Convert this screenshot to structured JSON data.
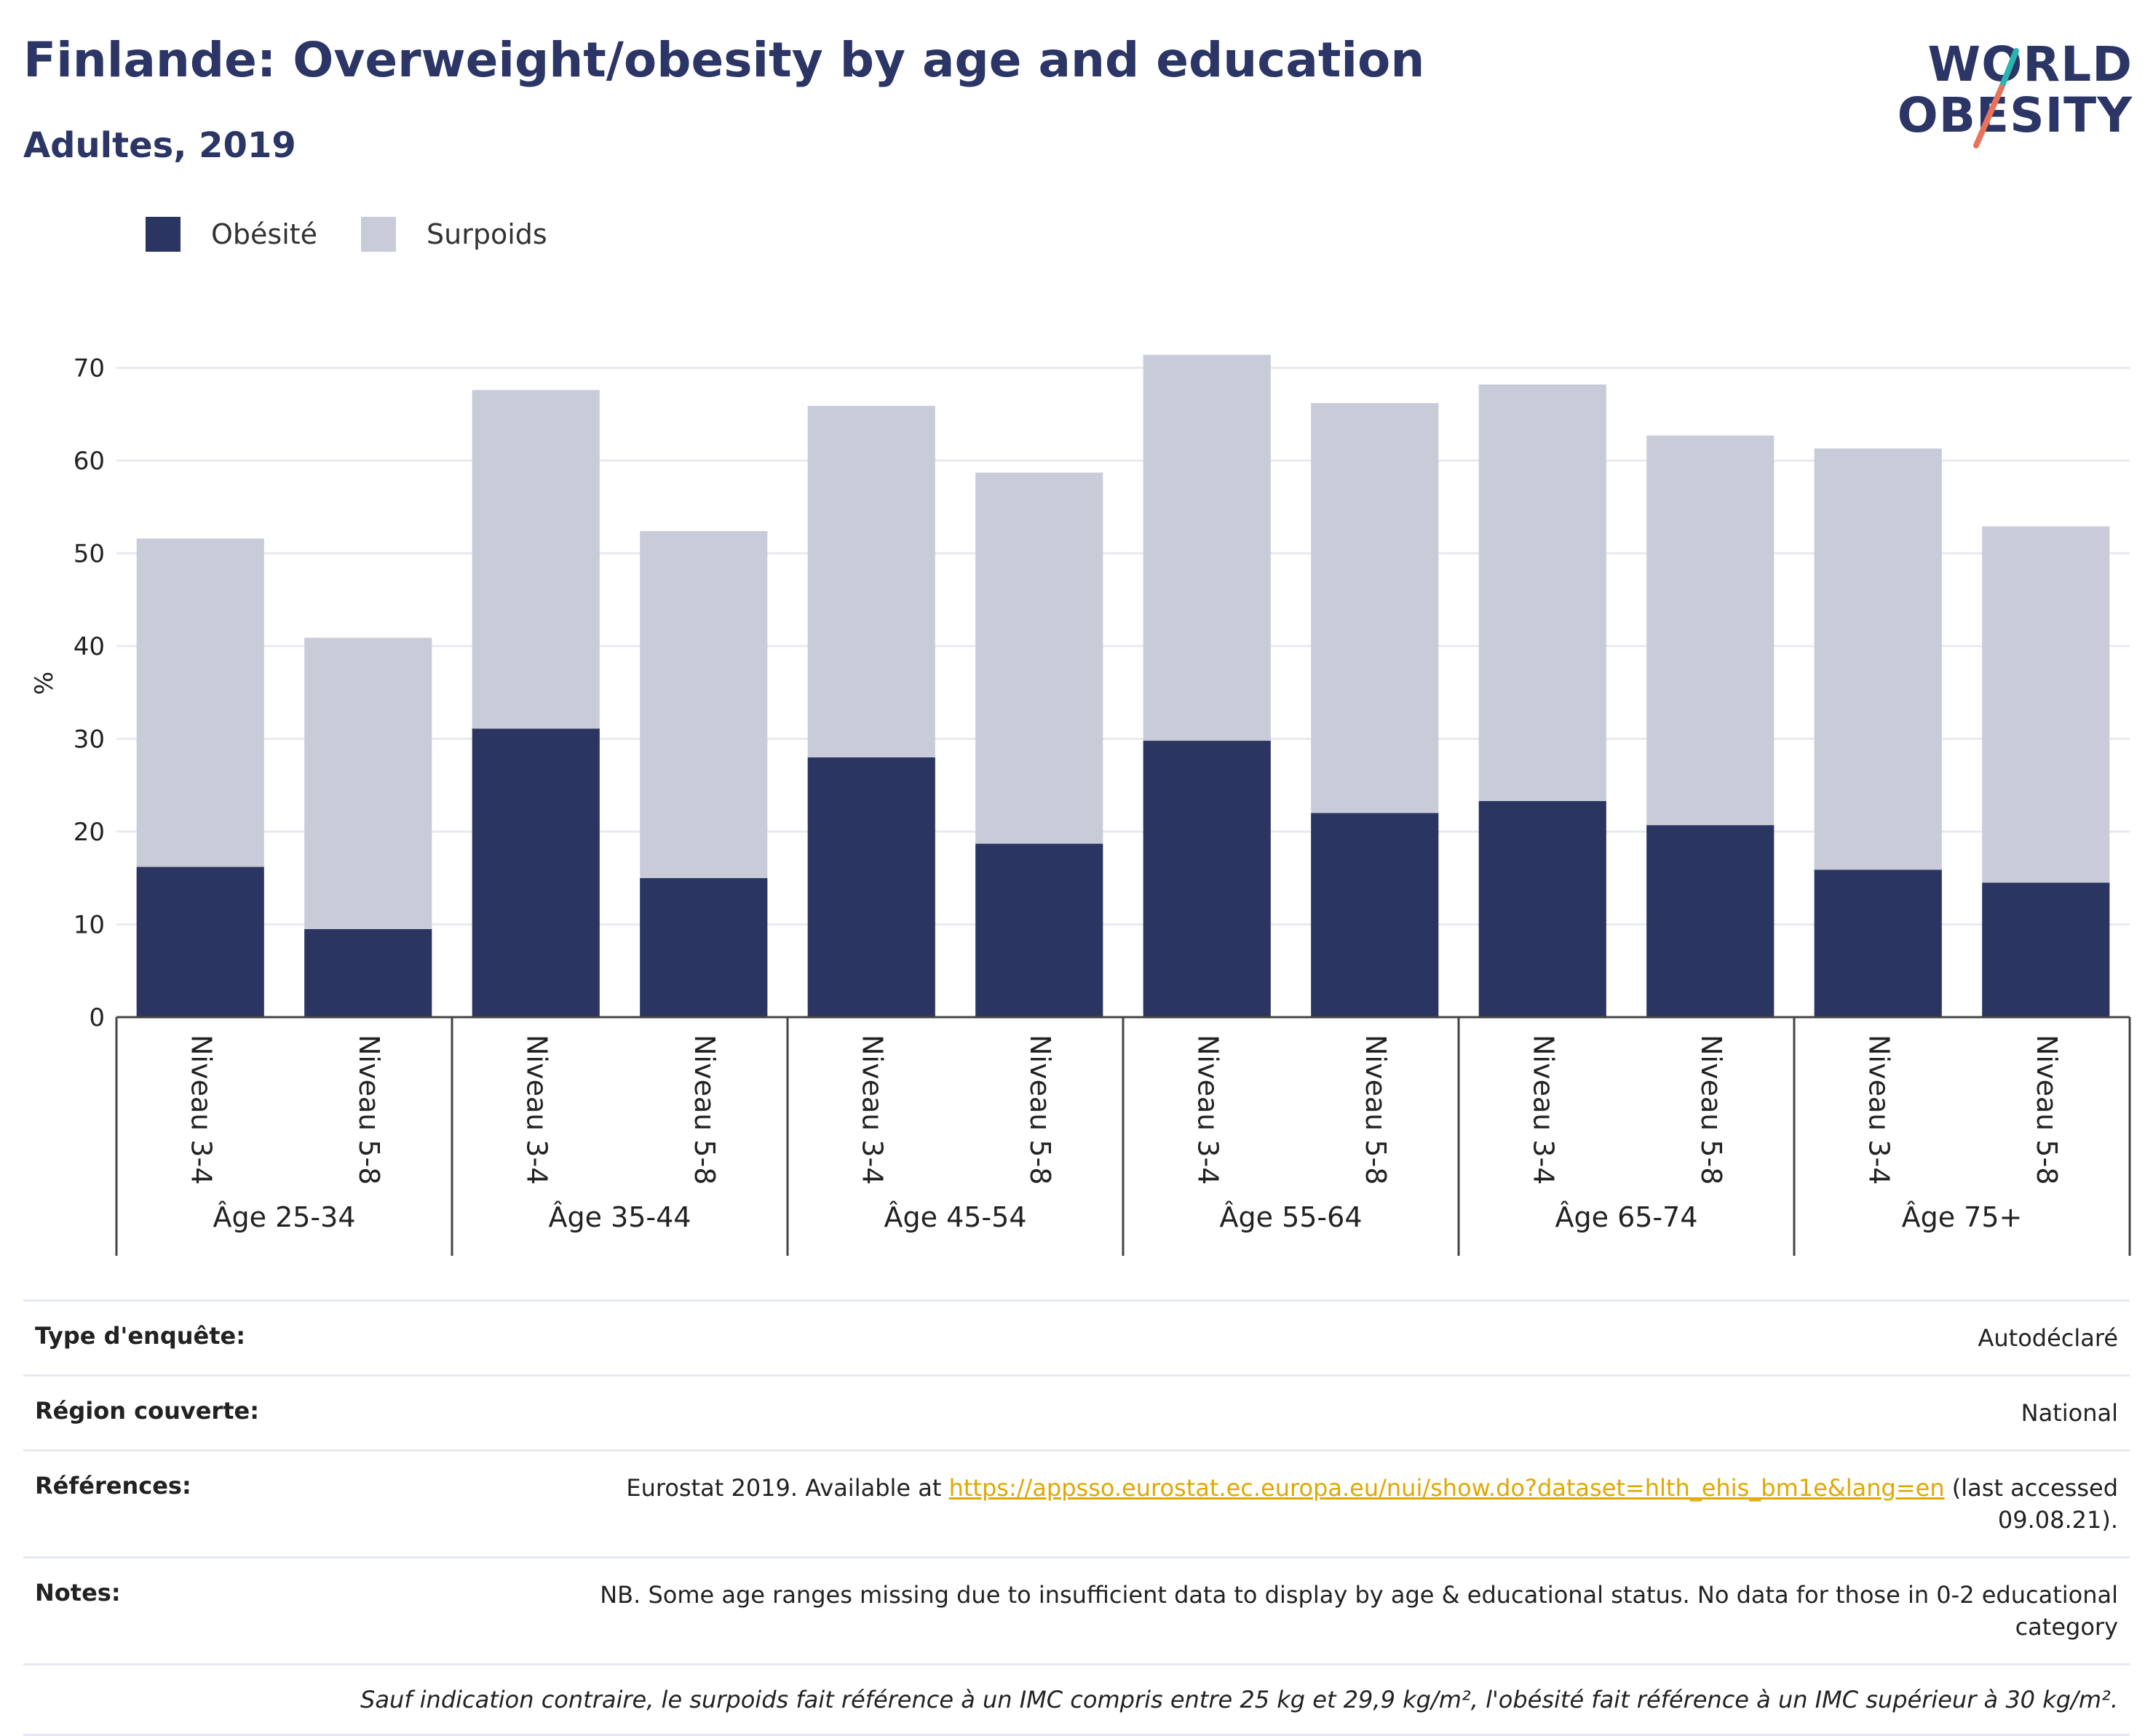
{
  "header": {
    "title": "Finlande: Overweight/obesity by age and education",
    "subtitle": "Adultes, 2019"
  },
  "logo": {
    "line1": "WORLD",
    "line2": "OBESITY",
    "accent_teal": "#2bb5b0",
    "accent_coral": "#e8735a"
  },
  "legend": {
    "items": [
      {
        "label": "Obésité",
        "color": "#2b3562"
      },
      {
        "label": "Surpoids",
        "color": "#c9ccd8"
      }
    ]
  },
  "chart_data": {
    "type": "bar",
    "stacked": true,
    "ylabel": "%",
    "ylim": [
      0,
      72
    ],
    "yticks": [
      0,
      10,
      20,
      30,
      40,
      50,
      60,
      70
    ],
    "grid": true,
    "legend_position": "top-left",
    "groups": [
      "Âge 25-34",
      "Âge 35-44",
      "Âge 45-54",
      "Âge 55-64",
      "Âge 65-74",
      "Âge 75+"
    ],
    "categories": [
      "Niveau 3-4",
      "Niveau 5-8",
      "Niveau 3-4",
      "Niveau 5-8",
      "Niveau 3-4",
      "Niveau 5-8",
      "Niveau 3-4",
      "Niveau 5-8",
      "Niveau 3-4",
      "Niveau 5-8",
      "Niveau 3-4",
      "Niveau 5-8"
    ],
    "series": [
      {
        "name": "Obésité",
        "color": "#2b3562",
        "values": [
          16.2,
          9.5,
          31.1,
          15.0,
          28.0,
          18.7,
          29.8,
          22.0,
          23.3,
          20.7,
          15.9,
          14.5
        ]
      },
      {
        "name": "Surpoids",
        "color": "#c9ccd8",
        "values": [
          35.4,
          31.4,
          36.5,
          37.4,
          37.9,
          40.0,
          41.6,
          44.2,
          44.9,
          42.0,
          45.4,
          38.4
        ]
      }
    ]
  },
  "info": {
    "survey_type_label": "Type d'enquête:",
    "survey_type_value": "Autodéclaré",
    "region_label": "Région couverte:",
    "region_value": "National",
    "references_label": "Références:",
    "references_prefix": "Eurostat 2019. Available at ",
    "references_link": "https://appsso.eurostat.ec.europa.eu/nui/show.do?dataset=hlth_ehis_bm1e&lang=en",
    "references_suffix": " (last accessed 09.08.21).",
    "notes_label": "Notes:",
    "notes_value": "NB. Some age ranges missing due to insufficient data to display by age & educational status. No data for those in 0-2 educational category",
    "footnote": "Sauf indication contraire, le surpoids fait référence à un IMC compris entre 25 kg et 29,9 kg/m², l'obésité fait référence à un IMC supérieur à 30 kg/m²."
  }
}
